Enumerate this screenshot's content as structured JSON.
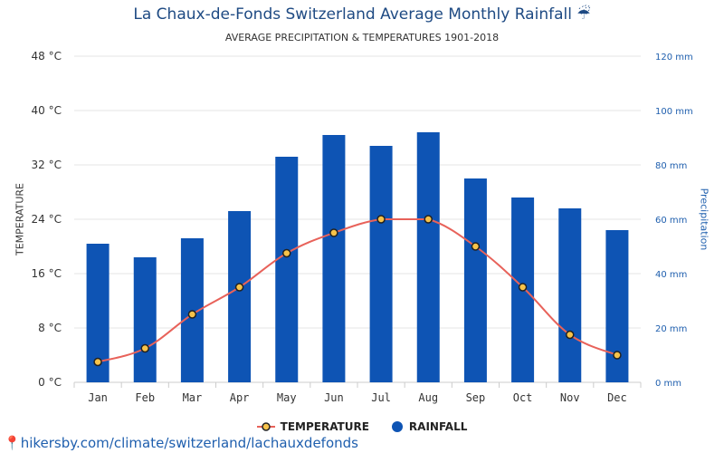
{
  "chart_data": {
    "type": "bar",
    "title": "La Chaux-de-Fonds Switzerland Average Monthly Rainfall ☔",
    "subtitle": "AVERAGE PRECIPITATION & TEMPERATURES 1901-2018",
    "ylabel_left": "TEMPERATURE",
    "ylabel_right": "Precipitation",
    "categories": [
      "Jan",
      "Feb",
      "Mar",
      "Apr",
      "May",
      "Jun",
      "Jul",
      "Aug",
      "Sep",
      "Oct",
      "Nov",
      "Dec"
    ],
    "series": [
      {
        "name": "RAINFALL",
        "type": "bar",
        "axis": "right",
        "color": "#0e54b4",
        "values": [
          51,
          46,
          53,
          63,
          83,
          91,
          87,
          92,
          75,
          68,
          64,
          56
        ]
      },
      {
        "name": "TEMPERATURE",
        "type": "line",
        "axis": "left",
        "color": "#e8625a",
        "marker_fill": "#f7c34a",
        "values": [
          3,
          5,
          10,
          14,
          19,
          22,
          24,
          24,
          20,
          14,
          7,
          4
        ]
      }
    ],
    "left_axis": {
      "min": 0,
      "max": 48,
      "ticks": [
        "0 °C",
        "8 °C",
        "16 °C",
        "24 °C",
        "32 °C",
        "40 °C",
        "48 °C"
      ]
    },
    "right_axis": {
      "min": 0,
      "max": 120,
      "ticks": [
        "0 mm",
        "20 mm",
        "40 mm",
        "60 mm",
        "80 mm",
        "100 mm",
        "120 mm"
      ]
    },
    "grid": true,
    "legend_position": "bottom"
  },
  "source": "hikersby.com/climate/switzerland/lachauxdefonds"
}
